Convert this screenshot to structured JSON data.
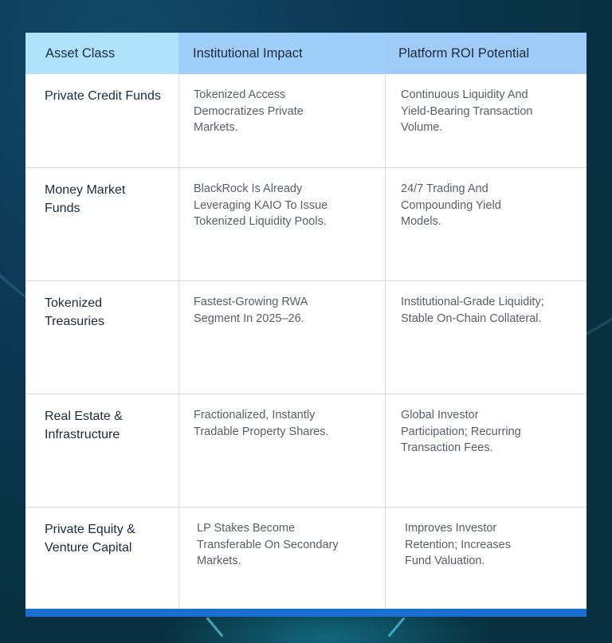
{
  "table": {
    "headers": [
      "Asset Class",
      "Institutional Impact",
      "Platform ROI Potential"
    ],
    "rows": [
      {
        "asset": "Private Credit Funds",
        "impact": "Tokenized Access Democratizes Private Markets.",
        "roi": "Continuous Liquidity And Yield-Bearing Transaction Volume."
      },
      {
        "asset": "Money Market Funds",
        "impact": "BlackRock Is Already Leveraging KAIO To Issue Tokenized Liquidity Pools.",
        "roi": "24/7 Trading And Compounding Yield Models."
      },
      {
        "asset": "Tokenized Treasuries",
        "impact": "Fastest-Growing RWA Segment In 2025–26.",
        "roi": "Institutional-Grade Liquidity; Stable On-Chain Collateral."
      },
      {
        "asset": "Real Estate & Infrastructure",
        "impact": "Fractionalized, Instantly Tradable Property Shares.",
        "roi": "Global Investor Participation; Recurring Transaction Fees."
      },
      {
        "asset": "Private Equity & Venture Capital",
        "impact": "LP Stakes Become Transferable On Secondary Markets.",
        "roi": "Improves Investor Retention; Increases Fund Valuation."
      }
    ]
  },
  "colors": {
    "header_col1": "#aee3fb",
    "header_col2": "#a0cefa",
    "header_col3": "#9ecbf7",
    "accent_bar": "#1a6fd3",
    "background": "#0a3345"
  }
}
